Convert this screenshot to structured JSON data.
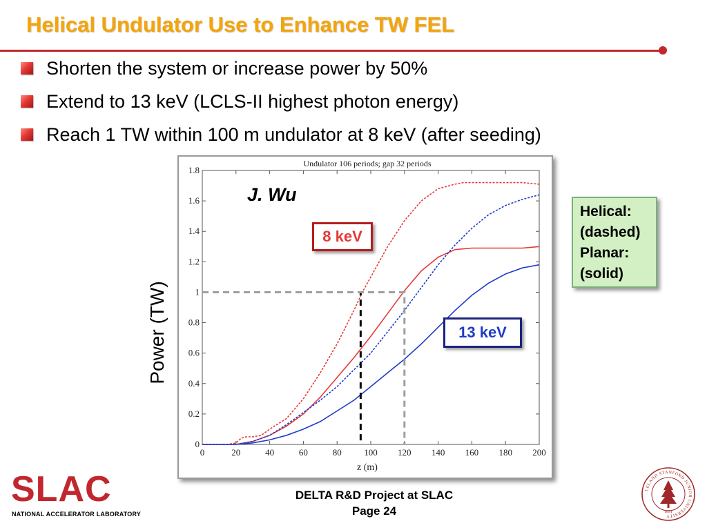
{
  "slide": {
    "title": "Helical Undulator Use to Enhance TW FEL",
    "bullets": [
      "Shorten the system or increase power by 50%",
      "Extend to 13 keV (LCLS-II highest photon energy)",
      "Reach 1 TW within 100 m undulator at 8 keV (after seeding)"
    ],
    "author_label": "J. Wu",
    "label_8kev": "8 keV",
    "label_13kev": "13 keV",
    "legend_lines": [
      "Helical:",
      "(dashed)",
      "Planar:",
      "(solid)"
    ],
    "footer_line1": "DELTA R&D Project at SLAC",
    "footer_line2": "Page 24",
    "logo_text": "SLAC",
    "logo_subtitle": "NATIONAL ACCELERATOR LABORATORY",
    "seal_text": "LELAND STANFORD JUNIOR UNIVERSITY",
    "seal_year": "1891",
    "colors": {
      "title": "#f2a50c",
      "rule": "#c1272d",
      "red_series": "#e53935",
      "blue_series": "#1e3cc8",
      "legend_bg": "#d2f0c4"
    }
  },
  "chart_data": {
    "type": "line",
    "title": "Undulator 106 periods; gap 32 periods",
    "xlabel": "z  (m)",
    "ylabel": "Power (TW)",
    "xlim": [
      0,
      200
    ],
    "ylim": [
      0,
      1.8
    ],
    "xticks": [
      0,
      20,
      40,
      60,
      80,
      100,
      120,
      140,
      160,
      180,
      200
    ],
    "yticks": [
      0,
      0.2,
      0.4,
      0.6,
      0.8,
      1,
      1.2,
      1.4,
      1.6,
      1.8
    ],
    "grid": false,
    "series": [
      {
        "name": "8 keV",
        "color": "#e53935",
        "dash": true,
        "x": [
          0,
          15,
          20,
          23,
          26,
          30,
          35,
          40,
          50,
          60,
          70,
          80,
          90,
          95,
          100,
          110,
          120,
          130,
          140,
          150,
          155,
          160,
          170,
          180,
          190,
          200
        ],
        "y": [
          0,
          0,
          0.01,
          0.04,
          0.05,
          0.05,
          0.06,
          0.1,
          0.17,
          0.3,
          0.47,
          0.66,
          0.88,
          1.0,
          1.1,
          1.3,
          1.47,
          1.6,
          1.68,
          1.71,
          1.72,
          1.72,
          1.72,
          1.72,
          1.72,
          1.71
        ]
      },
      {
        "name": "8 keV",
        "color": "#e53935",
        "dash": false,
        "x": [
          0,
          20,
          25,
          30,
          40,
          50,
          60,
          70,
          80,
          90,
          100,
          110,
          120,
          130,
          140,
          150,
          160,
          170,
          180,
          190,
          200
        ],
        "y": [
          0,
          0,
          0.01,
          0.02,
          0.06,
          0.12,
          0.2,
          0.31,
          0.44,
          0.57,
          0.71,
          0.86,
          1.01,
          1.14,
          1.23,
          1.28,
          1.29,
          1.29,
          1.29,
          1.29,
          1.3
        ]
      },
      {
        "name": "13 keV",
        "color": "#1e3cc8",
        "dash": true,
        "x": [
          0,
          20,
          25,
          30,
          40,
          50,
          60,
          70,
          80,
          90,
          100,
          110,
          120,
          130,
          140,
          150,
          160,
          170,
          180,
          190,
          200
        ],
        "y": [
          0,
          0,
          0.01,
          0.02,
          0.06,
          0.13,
          0.21,
          0.29,
          0.38,
          0.49,
          0.6,
          0.74,
          0.88,
          1.03,
          1.18,
          1.31,
          1.42,
          1.51,
          1.57,
          1.61,
          1.64
        ]
      },
      {
        "name": "13 keV",
        "color": "#1e3cc8",
        "dash": false,
        "x": [
          0,
          20,
          25,
          30,
          40,
          50,
          60,
          70,
          80,
          90,
          100,
          110,
          120,
          130,
          140,
          150,
          160,
          170,
          180,
          190,
          200
        ],
        "y": [
          0,
          0,
          0.005,
          0.01,
          0.03,
          0.06,
          0.1,
          0.15,
          0.22,
          0.29,
          0.38,
          0.47,
          0.56,
          0.66,
          0.77,
          0.88,
          0.98,
          1.06,
          1.12,
          1.16,
          1.18
        ]
      }
    ],
    "reference_lines": [
      {
        "color": "#000000",
        "x": 94,
        "y": 1
      },
      {
        "color": "#9e9e9e",
        "x": 120,
        "y": 1
      }
    ]
  }
}
